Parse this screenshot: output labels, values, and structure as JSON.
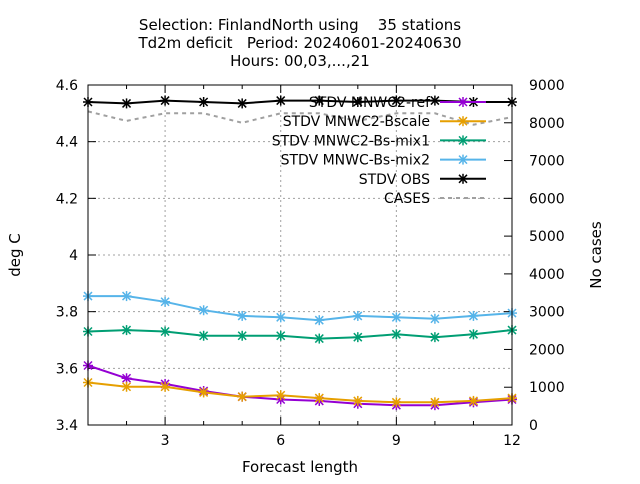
{
  "title_lines": [
    "Selection: FinlandNorth using    35 stations",
    "Td2m deficit   Period: 20240601-20240630",
    "Hours: 00,03,...,21"
  ],
  "chart_data": {
    "type": "line",
    "xlabel": "Forecast length",
    "ylabel": "deg C",
    "y2label": "No cases",
    "xlim": [
      1,
      12
    ],
    "ylim": [
      3.4,
      4.6
    ],
    "y2lim": [
      0,
      9000
    ],
    "x_ticks": [
      3,
      6,
      9,
      12
    ],
    "y_ticks": [
      "3.4",
      "3.6",
      "3.8",
      "4",
      "4.2",
      "4.4",
      "4.6"
    ],
    "y2_ticks": [
      "0",
      "1000",
      "2000",
      "3000",
      "4000",
      "5000",
      "6000",
      "7000",
      "8000",
      "9000"
    ],
    "grid": true,
    "legend_position": "top-right",
    "x": [
      1,
      2,
      3,
      4,
      5,
      6,
      7,
      8,
      9,
      10,
      11,
      12
    ],
    "series": [
      {
        "name": "STDV MNWC2-ref",
        "color": "#9400d3",
        "marker": "x",
        "axis": "y",
        "values": [
          3.61,
          3.565,
          3.545,
          3.52,
          3.5,
          3.49,
          3.485,
          3.475,
          3.47,
          3.47,
          3.48,
          3.49
        ]
      },
      {
        "name": "STDV MNWC2-Bscale",
        "color": "#e69f00",
        "marker": "x",
        "axis": "y",
        "values": [
          3.55,
          3.535,
          3.535,
          3.515,
          3.5,
          3.505,
          3.495,
          3.485,
          3.48,
          3.48,
          3.485,
          3.495
        ]
      },
      {
        "name": "STDV MNWC2-Bs-mix1",
        "color": "#009e73",
        "marker": "x",
        "axis": "y",
        "values": [
          3.73,
          3.735,
          3.73,
          3.715,
          3.715,
          3.715,
          3.705,
          3.71,
          3.72,
          3.71,
          3.72,
          3.735
        ]
      },
      {
        "name": "STDV MNWC-Bs-mix2",
        "color": "#56b4e9",
        "marker": "x",
        "axis": "y",
        "values": [
          3.855,
          3.855,
          3.835,
          3.805,
          3.785,
          3.78,
          3.77,
          3.785,
          3.78,
          3.775,
          3.785,
          3.795
        ]
      },
      {
        "name": "STDV OBS",
        "color": "#000000",
        "marker": "x",
        "axis": "y",
        "values": [
          4.54,
          4.535,
          4.545,
          4.54,
          4.535,
          4.545,
          4.545,
          4.54,
          4.545,
          4.545,
          4.54,
          4.54
        ]
      },
      {
        "name": "CASES",
        "color": "#a0a0a0",
        "marker": "none",
        "axis": "y2",
        "dashed": true,
        "values": [
          8300,
          8050,
          8250,
          8250,
          8000,
          8250,
          8250,
          8050,
          8250,
          8250,
          7950,
          8150
        ]
      }
    ]
  }
}
